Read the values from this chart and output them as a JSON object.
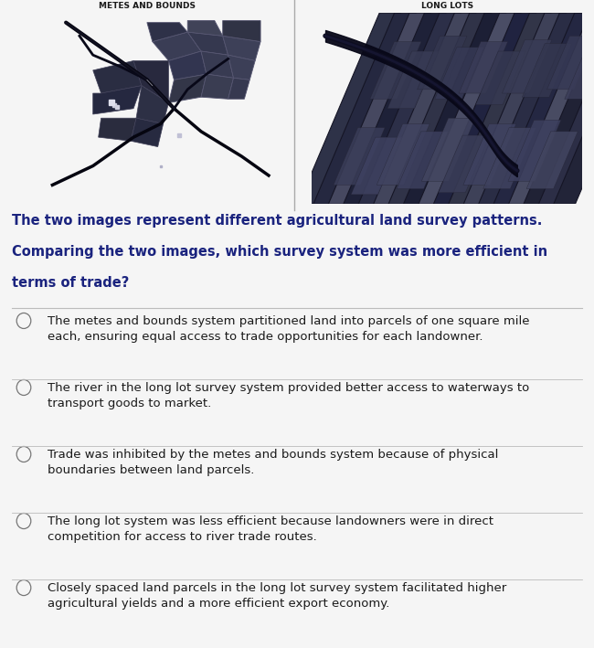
{
  "title_left": "METES AND BOUNDS",
  "title_right": "LONG LOTS",
  "question_line1": "The two images represent different agricultural land survey patterns.",
  "question_line2": "Comparing the two images, which survey system was more efficient in",
  "question_line3": "terms of trade?",
  "options": [
    "The metes and bounds system partitioned land into parcels of one square mile\neach, ensuring equal access to trade opportunities for each landowner.",
    "The river in the long lot survey system provided better access to waterways to\ntransport goods to market.",
    "Trade was inhibited by the metes and bounds system because of physical\nboundaries between land parcels.",
    "The long lot system was less efficient because landowners were in direct\ncompetition for access to river trade routes.",
    "Closely spaced land parcels in the long lot survey system facilitated higher\nagricultural yields and a more efficient export economy."
  ],
  "bg_color": "#f5f5f5",
  "panel_bg": "#f5f5f5",
  "title_fontsize": 6.5,
  "question_fontsize": 10.5,
  "option_fontsize": 9.5,
  "divider_color": "#bbbbbb",
  "circle_color": "#777777",
  "text_color": "#1a1a1a",
  "question_color": "#1a237e",
  "img_left_colors": [
    "#1c1c28",
    "#252535",
    "#1a1f32",
    "#2a2a3a",
    "#181828",
    "#222230",
    "#1e2030",
    "#282838",
    "#151525",
    "#20202e",
    "#232333",
    "#1f1f2d",
    "#191929",
    "#242434",
    "#1b1b2b",
    "#212131",
    "#172038",
    "#1d2232",
    "#222838",
    "#1a1e30"
  ],
  "img_right_colors": [
    "#252538",
    "#1e2035",
    "#2a2a40",
    "#1a1a30",
    "#222240",
    "#1d1d32",
    "#282845",
    "#202038",
    "#2c2c42",
    "#181830",
    "#252542",
    "#1f1f35",
    "#2b2b40",
    "#1c1c2e",
    "#232342",
    "#212135",
    "#272745",
    "#1a1a28",
    "#2d2d45",
    "#202038"
  ],
  "road_color": "#0a0a18",
  "river_color": "#0d0d1e",
  "parcel_edge": "#2a2a40",
  "parcel_light": "#3a3a55",
  "parcel_lighter": "#4a4a65"
}
